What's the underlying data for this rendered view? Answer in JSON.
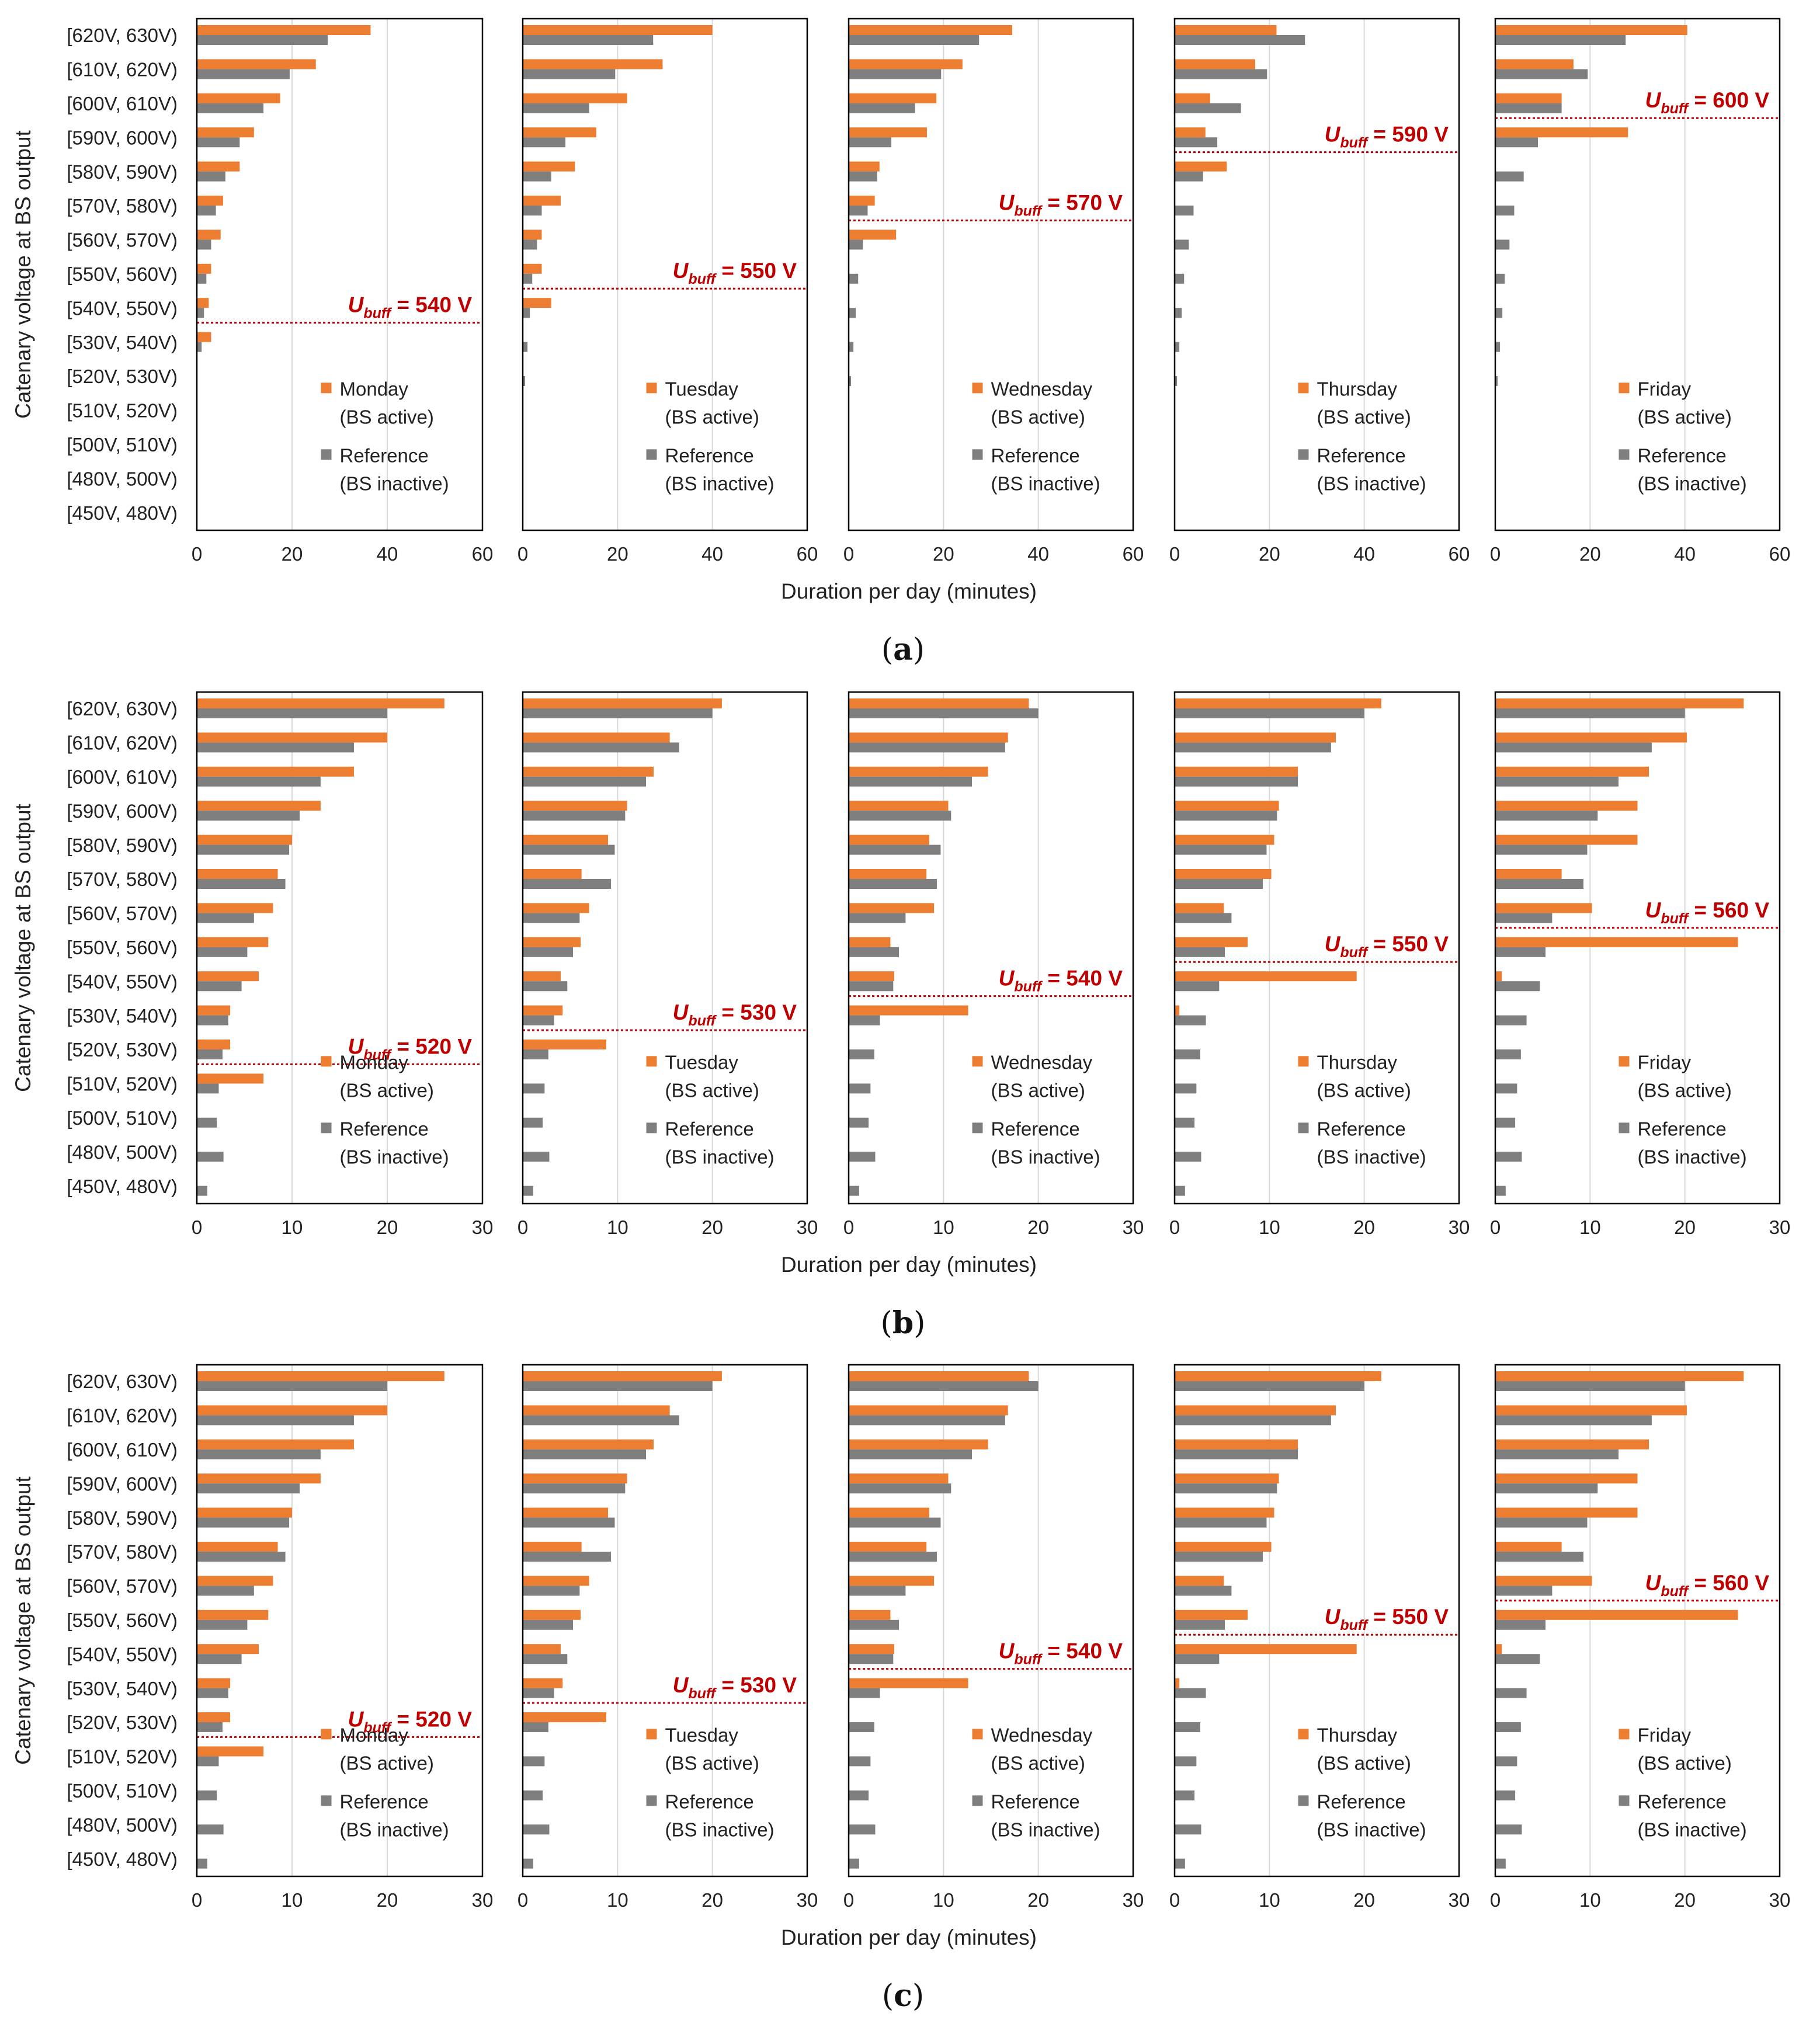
{
  "chart_data": [
    {
      "type": "bar",
      "panel_label": "a",
      "caption_open": "(",
      "caption_close": ")",
      "ylabel": "Catenary voltage at BS output",
      "xlabel": "Duration per day (minutes)",
      "xlim": [
        0,
        60
      ],
      "xticks": [
        "0",
        "20",
        "40",
        "60"
      ],
      "categories": [
        "[620V, 630V)",
        "[610V, 620V)",
        "[600V, 610V)",
        "[590V, 600V)",
        "[580V, 590V)",
        "[570V, 580V)",
        "[560V, 570V)",
        "[550V, 560V)",
        "[540V, 550V)",
        "[530V, 540V)",
        "[520V, 530V)",
        "[510V, 520V)",
        "[500V, 510V)",
        "[480V, 500V)",
        "[450V, 480V)"
      ],
      "days": [
        {
          "day": "Monday",
          "legend_active_sub": "(BS active)",
          "legend_ref": "Reference",
          "legend_ref_sub": "(BS inactive)",
          "ubuff": {
            "prefix": "U",
            "sub": "buff",
            "value": "= 540 V",
            "threshold_category": 8
          },
          "active": [
            36.5,
            25,
            17.5,
            12,
            9,
            5.5,
            5,
            3,
            2.5,
            3,
            0,
            0,
            0,
            0,
            0
          ],
          "reference": [
            27.5,
            19.5,
            14,
            9,
            6,
            4,
            3,
            2,
            1.5,
            1,
            0,
            0,
            0,
            0,
            0
          ]
        },
        {
          "day": "Tuesday",
          "legend_active_sub": "(BS active)",
          "legend_ref": "Reference",
          "legend_ref_sub": "(BS inactive)",
          "ubuff": {
            "prefix": "U",
            "sub": "buff",
            "value": "= 550 V",
            "threshold_category": 7
          },
          "active": [
            40,
            29.5,
            22,
            15.5,
            11,
            8,
            4,
            4,
            6,
            0,
            0,
            0,
            0,
            0,
            0
          ],
          "reference": [
            27.5,
            19.5,
            14,
            9,
            6,
            4,
            3,
            2,
            1.5,
            1,
            0.5,
            0,
            0,
            0,
            0
          ]
        },
        {
          "day": "Wednesday",
          "legend_active_sub": "(BS active)",
          "legend_ref": "Reference",
          "legend_ref_sub": "(BS inactive)",
          "ubuff": {
            "prefix": "U",
            "sub": "buff",
            "value": "= 570 V",
            "threshold_category": 5
          },
          "active": [
            34.5,
            24,
            18.5,
            16.5,
            6.5,
            5.5,
            10,
            0,
            0,
            0,
            0,
            0,
            0,
            0,
            0
          ],
          "reference": [
            27.5,
            19.5,
            14,
            9,
            6,
            4,
            3,
            2,
            1.5,
            1,
            0.5,
            0,
            0,
            0,
            0
          ]
        },
        {
          "day": "Thursday",
          "legend_active_sub": "(BS active)",
          "legend_ref": "Reference",
          "legend_ref_sub": "(BS inactive)",
          "ubuff": {
            "prefix": "U",
            "sub": "buff",
            "value": "= 590 V",
            "threshold_category": 3
          },
          "active": [
            21.5,
            17,
            7.5,
            6.5,
            11,
            0,
            0,
            0,
            0,
            0,
            0,
            0,
            0,
            0,
            0
          ],
          "reference": [
            27.5,
            19.5,
            14,
            9,
            6,
            4,
            3,
            2,
            1.5,
            1,
            0.5,
            0,
            0,
            0,
            0
          ]
        },
        {
          "day": "Friday",
          "legend_active_sub": "(BS active)",
          "legend_ref": "Reference",
          "legend_ref_sub": "(BS inactive)",
          "ubuff": {
            "prefix": "U",
            "sub": "buff",
            "value": "= 600 V",
            "threshold_category": 2
          },
          "active": [
            40.5,
            16.5,
            14,
            28,
            0,
            0,
            0,
            0,
            0,
            0,
            0,
            0,
            0,
            0,
            0
          ],
          "reference": [
            27.5,
            19.5,
            14,
            9,
            6,
            4,
            3,
            2,
            1.5,
            1,
            0.5,
            0,
            0,
            0,
            0
          ]
        }
      ]
    },
    {
      "type": "bar",
      "panel_label": "b",
      "caption_open": "(",
      "caption_close": ")",
      "ylabel": "Catenary voltage at BS output",
      "xlabel": "Duration per day (minutes)",
      "xlim": [
        0,
        30
      ],
      "xticks": [
        "0",
        "10",
        "20",
        "30"
      ],
      "categories": [
        "[620V, 630V)",
        "[610V, 620V)",
        "[600V, 610V)",
        "[590V, 600V)",
        "[580V, 590V)",
        "[570V, 580V)",
        "[560V, 570V)",
        "[550V, 560V)",
        "[540V, 550V)",
        "[530V, 540V)",
        "[520V, 530V)",
        "[510V, 520V)",
        "[500V, 510V)",
        "[480V, 500V)",
        "[450V, 480V)"
      ],
      "days": [
        {
          "day": "Monday",
          "legend_active_sub": "(BS active)",
          "legend_ref": "Reference",
          "legend_ref_sub": "(BS inactive)",
          "ubuff": {
            "prefix": "U",
            "sub": "buff",
            "value": "= 520 V",
            "threshold_category": 10
          },
          "active": [
            26,
            20,
            16.5,
            13,
            10,
            8.5,
            8,
            7.5,
            6.5,
            3.5,
            3.5,
            7,
            0,
            0,
            0
          ],
          "reference": [
            20,
            16.5,
            13,
            10.8,
            9.7,
            9.3,
            6,
            5.3,
            4.7,
            3.3,
            2.7,
            2.3,
            2.1,
            2.8,
            1.1
          ]
        },
        {
          "day": "Tuesday",
          "legend_active_sub": "(BS active)",
          "legend_ref": "Reference",
          "legend_ref_sub": "(BS inactive)",
          "ubuff": {
            "prefix": "U",
            "sub": "buff",
            "value": "= 530 V",
            "threshold_category": 9
          },
          "active": [
            21,
            15.5,
            13.8,
            11,
            9,
            6.2,
            7,
            6.1,
            4,
            4.2,
            8.8,
            0,
            0,
            0,
            0
          ],
          "reference": [
            20,
            16.5,
            13,
            10.8,
            9.7,
            9.3,
            6,
            5.3,
            4.7,
            3.3,
            2.7,
            2.3,
            2.1,
            2.8,
            1.1
          ]
        },
        {
          "day": "Wednesday",
          "legend_active_sub": "(BS active)",
          "legend_ref": "Reference",
          "legend_ref_sub": "(BS inactive)",
          "ubuff": {
            "prefix": "U",
            "sub": "buff",
            "value": "= 540 V",
            "threshold_category": 8
          },
          "active": [
            19,
            16.8,
            14.7,
            10.5,
            8.5,
            8.2,
            9,
            4.4,
            4.8,
            12.6,
            0,
            0,
            0,
            0,
            0
          ],
          "reference": [
            20,
            16.5,
            13,
            10.8,
            9.7,
            9.3,
            6,
            5.3,
            4.7,
            3.3,
            2.7,
            2.3,
            2.1,
            2.8,
            1.1
          ]
        },
        {
          "day": "Thursday",
          "legend_active_sub": "(BS active)",
          "legend_ref": "Reference",
          "legend_ref_sub": "(BS inactive)",
          "ubuff": {
            "prefix": "U",
            "sub": "buff",
            "value": "= 550 V",
            "threshold_category": 7
          },
          "active": [
            21.8,
            17,
            13,
            11,
            10.5,
            10.2,
            5.2,
            7.7,
            19.2,
            0.5,
            0,
            0,
            0,
            0,
            0
          ],
          "reference": [
            20,
            16.5,
            13,
            10.8,
            9.7,
            9.3,
            6,
            5.3,
            4.7,
            3.3,
            2.7,
            2.3,
            2.1,
            2.8,
            1.1
          ]
        },
        {
          "day": "Friday",
          "legend_active_sub": "(BS active)",
          "legend_ref": "Reference",
          "legend_ref_sub": "(BS inactive)",
          "ubuff": {
            "prefix": "U",
            "sub": "buff",
            "value": "= 560 V",
            "threshold_category": 6
          },
          "active": [
            26.2,
            20.2,
            16.2,
            15,
            15,
            7,
            10.2,
            25.6,
            0.7,
            0,
            0,
            0,
            0,
            0,
            0
          ],
          "reference": [
            20,
            16.5,
            13,
            10.8,
            9.7,
            9.3,
            6,
            5.3,
            4.7,
            3.3,
            2.7,
            2.3,
            2.1,
            2.8,
            1.1
          ]
        }
      ]
    },
    {
      "type": "bar",
      "panel_label": "c",
      "caption_open": "(",
      "caption_close": ")",
      "ylabel": "Catenary voltage at BS output",
      "xlabel": "Duration per day (minutes)",
      "xlim": [
        0,
        30
      ],
      "xticks": [
        "0",
        "10",
        "20",
        "30"
      ],
      "categories": [
        "[620V, 630V)",
        "[610V, 620V)",
        "[600V, 610V)",
        "[590V, 600V)",
        "[580V, 590V)",
        "[570V, 580V)",
        "[560V, 570V)",
        "[550V, 560V)",
        "[540V, 550V)",
        "[530V, 540V)",
        "[520V, 530V)",
        "[510V, 520V)",
        "[500V, 510V)",
        "[480V, 500V)",
        "[450V, 480V)"
      ],
      "days": [
        {
          "day": "Monday",
          "legend_active_sub": "(BS active)",
          "legend_ref": "Reference",
          "legend_ref_sub": "(BS inactive)",
          "ubuff": {
            "prefix": "U",
            "sub": "buff",
            "value": "= 520 V",
            "threshold_category": 10
          },
          "active": [
            26,
            20,
            16.5,
            13,
            10,
            8.5,
            8,
            7.5,
            6.5,
            3.5,
            3.5,
            7,
            0,
            0,
            0
          ],
          "reference": [
            20,
            16.5,
            13,
            10.8,
            9.7,
            9.3,
            6,
            5.3,
            4.7,
            3.3,
            2.7,
            2.3,
            2.1,
            2.8,
            1.1
          ]
        },
        {
          "day": "Tuesday",
          "legend_active_sub": "(BS active)",
          "legend_ref": "Reference",
          "legend_ref_sub": "(BS inactive)",
          "ubuff": {
            "prefix": "U",
            "sub": "buff",
            "value": "= 530 V",
            "threshold_category": 9
          },
          "active": [
            21,
            15.5,
            13.8,
            11,
            9,
            6.2,
            7,
            6.1,
            4,
            4.2,
            8.8,
            0,
            0,
            0,
            0
          ],
          "reference": [
            20,
            16.5,
            13,
            10.8,
            9.7,
            9.3,
            6,
            5.3,
            4.7,
            3.3,
            2.7,
            2.3,
            2.1,
            2.8,
            1.1
          ]
        },
        {
          "day": "Wednesday",
          "legend_active_sub": "(BS active)",
          "legend_ref": "Reference",
          "legend_ref_sub": "(BS inactive)",
          "ubuff": {
            "prefix": "U",
            "sub": "buff",
            "value": "= 540 V",
            "threshold_category": 8
          },
          "active": [
            19,
            16.8,
            14.7,
            10.5,
            8.5,
            8.2,
            9,
            4.4,
            4.8,
            12.6,
            0,
            0,
            0,
            0,
            0
          ],
          "reference": [
            20,
            16.5,
            13,
            10.8,
            9.7,
            9.3,
            6,
            5.3,
            4.7,
            3.3,
            2.7,
            2.3,
            2.1,
            2.8,
            1.1
          ]
        },
        {
          "day": "Thursday",
          "legend_active_sub": "(BS active)",
          "legend_ref": "Reference",
          "legend_ref_sub": "(BS inactive)",
          "ubuff": {
            "prefix": "U",
            "sub": "buff",
            "value": "= 550 V",
            "threshold_category": 7
          },
          "active": [
            21.8,
            17,
            13,
            11,
            10.5,
            10.2,
            5.2,
            7.7,
            19.2,
            0.5,
            0,
            0,
            0,
            0,
            0
          ],
          "reference": [
            20,
            16.5,
            13,
            10.8,
            9.7,
            9.3,
            6,
            5.3,
            4.7,
            3.3,
            2.7,
            2.3,
            2.1,
            2.8,
            1.1
          ]
        },
        {
          "day": "Friday",
          "legend_active_sub": "(BS active)",
          "legend_ref": "Reference",
          "legend_ref_sub": "(BS inactive)",
          "ubuff": {
            "prefix": "U",
            "sub": "buff",
            "value": "= 560 V",
            "threshold_category": 6
          },
          "active": [
            26.2,
            20.2,
            16.2,
            15,
            15,
            7,
            10.2,
            25.6,
            0.7,
            0,
            0,
            0,
            0,
            0,
            0
          ],
          "reference": [
            20,
            16.5,
            13,
            10.8,
            9.7,
            9.3,
            6,
            5.3,
            4.7,
            3.3,
            2.7,
            2.3,
            2.1,
            2.8,
            1.1
          ]
        }
      ]
    }
  ],
  "colors": {
    "active": "#ed7d31",
    "reference": "#7f7f7f",
    "ubuff": "#c00000",
    "grid": "#d9d9d9",
    "frame": "#000000"
  }
}
